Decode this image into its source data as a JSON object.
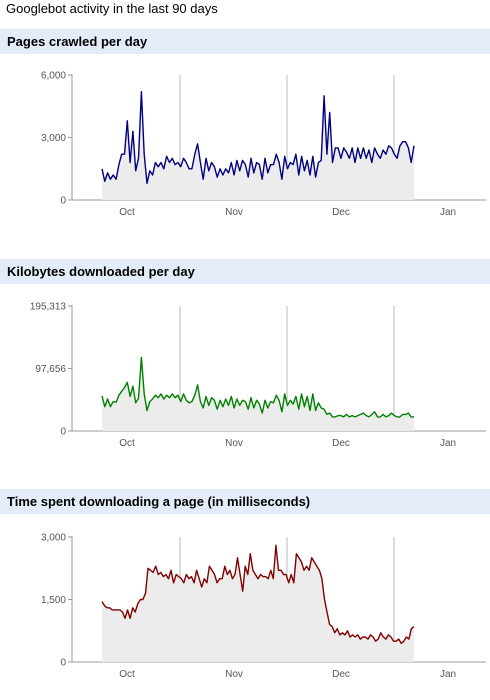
{
  "page": {
    "title": "Googlebot activity in the last 90 days"
  },
  "chart_data": [
    {
      "type": "area",
      "title": "Pages crawled per day",
      "ylim": [
        0,
        6000
      ],
      "yticks": [
        "0",
        "3,000",
        "6,000"
      ],
      "months": [
        "Oct",
        "Nov",
        "Dec",
        "Jan"
      ],
      "color": "#000080",
      "values": [
        1500,
        900,
        1300,
        1000,
        1200,
        1000,
        1700,
        2200,
        2200,
        3800,
        1800,
        3300,
        1400,
        2000,
        5200,
        2200,
        800,
        1400,
        1200,
        1800,
        1600,
        1800,
        1500,
        2100,
        1800,
        2000,
        1700,
        1800,
        1600,
        2000,
        1800,
        1500,
        1500,
        2200,
        2700,
        1800,
        1000,
        2000,
        1400,
        1800,
        1600,
        1100,
        1500,
        1200,
        1500,
        1300,
        1800,
        1200,
        1900,
        1400,
        1900,
        1700,
        1100,
        2000,
        1300,
        1800,
        1700,
        1000,
        2000,
        1300,
        1700,
        1700,
        2200,
        1800,
        1000,
        2100,
        1500,
        1800,
        1700,
        2200,
        1200,
        2100,
        1400,
        1900,
        1200,
        2100,
        1100,
        1800,
        1900,
        5000,
        2200,
        4200,
        1800,
        2500,
        2500,
        2000,
        2500,
        2300,
        2000,
        2500,
        1800,
        2500,
        2000,
        2500,
        2000,
        2400,
        1800,
        2500,
        2200,
        2000,
        2400,
        2200,
        2600,
        2500,
        2200,
        2000,
        2600,
        2800,
        2800,
        2500,
        1800,
        2600
      ]
    },
    {
      "type": "area",
      "title": "Kilobytes downloaded per day",
      "ylim": [
        0,
        195313
      ],
      "yticks": [
        "0",
        "97,656",
        "195,313"
      ],
      "months": [
        "Oct",
        "Nov",
        "Dec",
        "Jan"
      ],
      "color": "#008000",
      "values": [
        55000,
        38000,
        50000,
        38000,
        46000,
        45000,
        56000,
        62000,
        68000,
        76000,
        54000,
        70000,
        44000,
        51000,
        115000,
        58000,
        32000,
        46000,
        50000,
        56000,
        52000,
        58000,
        50000,
        56000,
        52000,
        58000,
        52000,
        56000,
        46000,
        58000,
        48000,
        44000,
        46000,
        56000,
        72000,
        46000,
        36000,
        54000,
        40000,
        52000,
        48000,
        34000,
        48000,
        38000,
        50000,
        40000,
        54000,
        36000,
        50000,
        40000,
        48000,
        46000,
        34000,
        52000,
        36000,
        48000,
        42000,
        28000,
        48000,
        36000,
        46000,
        44000,
        56000,
        48000,
        30000,
        58000,
        40000,
        48000,
        42000,
        54000,
        34000,
        58000,
        38000,
        54000,
        32000,
        58000,
        32000,
        44000,
        36000,
        34000,
        26000,
        28000,
        22000,
        22000,
        24000,
        24000,
        22000,
        26000,
        22000,
        24000,
        22000,
        24000,
        26000,
        28000,
        24000,
        22000,
        26000,
        30000,
        22000,
        22000,
        26000,
        22000,
        24000,
        28000,
        24000,
        22000,
        22000,
        26000,
        26000,
        28000,
        22000,
        22000
      ]
    },
    {
      "type": "area",
      "title": "Time spent downloading a page (in milliseconds)",
      "ylim": [
        0,
        3000
      ],
      "yticks": [
        "0",
        "1,500",
        "3,000"
      ],
      "months": [
        "Oct",
        "Nov",
        "Dec",
        "Jan"
      ],
      "color": "#800000",
      "values": [
        1450,
        1350,
        1300,
        1300,
        1250,
        1250,
        1250,
        1250,
        1200,
        1050,
        1250,
        1050,
        1300,
        1200,
        1400,
        1500,
        1500,
        1650,
        2250,
        2200,
        2150,
        2300,
        2100,
        2150,
        2050,
        2100,
        2000,
        2200,
        1900,
        2100,
        2050,
        2000,
        1900,
        2100,
        2000,
        2050,
        1900,
        2200,
        2000,
        1800,
        2000,
        1900,
        2300,
        2200,
        2100,
        1900,
        2000,
        2000,
        2300,
        2100,
        2200,
        2000,
        2100,
        2500,
        2100,
        1700,
        2300,
        2100,
        2600,
        2200,
        2100,
        2000,
        2100,
        2050,
        2050,
        2000,
        2200,
        2000,
        2800,
        2200,
        2200,
        2100,
        2100,
        1900,
        2100,
        1900,
        2600,
        2500,
        2400,
        2200,
        2300,
        2200,
        2500,
        2400,
        2300,
        2200,
        2000,
        1500,
        1200,
        900,
        850,
        700,
        800,
        650,
        700,
        650,
        750,
        600,
        650,
        600,
        650,
        550,
        600,
        600,
        550,
        650,
        600,
        500,
        550,
        700,
        600,
        550,
        650,
        600,
        500,
        500,
        550,
        450,
        500,
        600,
        550,
        800,
        850
      ]
    }
  ]
}
